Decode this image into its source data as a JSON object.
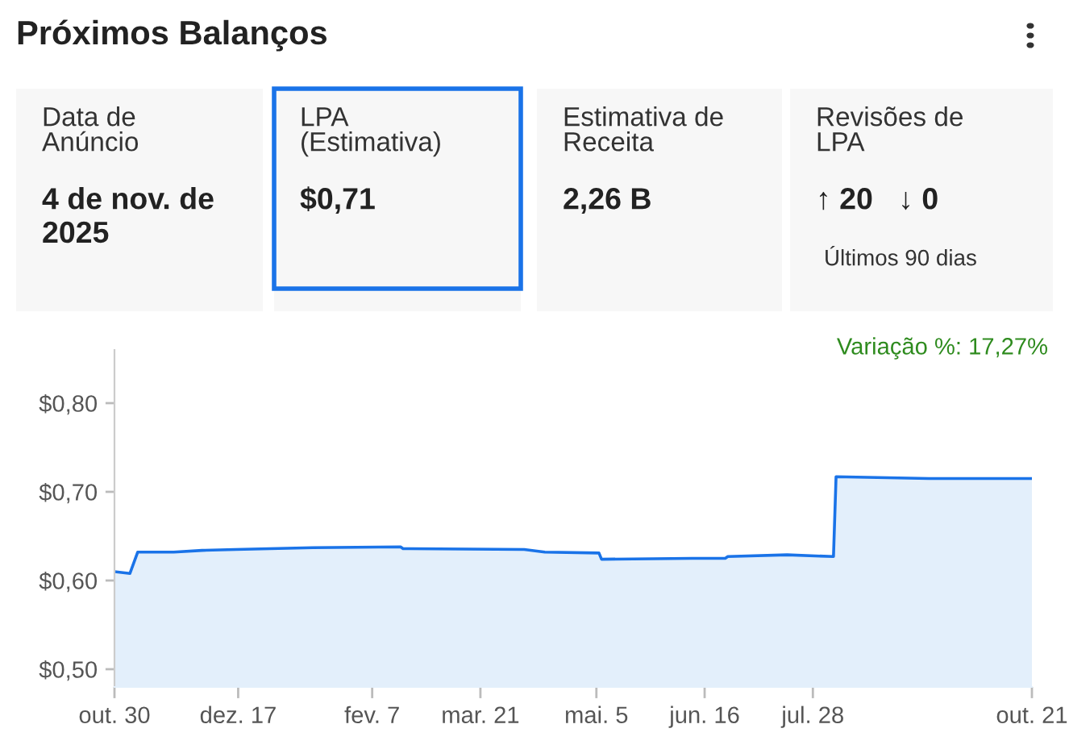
{
  "chart_data": [
    {
      "type": "other",
      "title": "Próximos Balanços",
      "annotations": [
        "Data de\nAnúncio",
        "4 de nov. de\n2025",
        "LPA\n(Estimativa)",
        "$0,71",
        "Estimativa de\nReceita",
        "2,26 B",
        "Revisões de\nLPA",
        "↑ 20   ↓ 0",
        "Últimos 90 dias"
      ]
    },
    {
      "type": "area",
      "annotations": [
        "Variação %: 17,27%"
      ],
      "grid": false,
      "x": [
        "2024-10-30",
        "2024-11-05",
        "2024-11-08",
        "2024-11-22",
        "2024-12-03",
        "2024-12-16",
        "2025-01-15",
        "2025-02-18",
        "2025-02-19",
        "2025-04-07",
        "2025-04-15",
        "2025-05-06",
        "2025-05-07",
        "2025-06-11",
        "2025-06-24",
        "2025-06-25",
        "2025-07-18",
        "2025-08-05",
        "2025-08-06",
        "2025-09-11",
        "2025-10-21"
      ],
      "series": [
        {
          "color": "#1a73e8",
          "values": [
            0.61,
            0.608,
            0.632,
            0.632,
            0.634,
            0.635,
            0.637,
            0.638,
            0.636,
            0.635,
            0.632,
            0.631,
            0.624,
            0.625,
            0.625,
            0.627,
            0.629,
            0.627,
            0.717,
            0.715,
            0.715
          ]
        }
      ],
      "xlim": [
        "2024-10-30",
        "2025-10-21"
      ],
      "xticks": [
        {
          "value": "2024-10-30",
          "label": "out. 30"
        },
        {
          "value": "2024-12-17",
          "label": "dez. 17"
        },
        {
          "value": "2025-02-07",
          "label": "fev. 7"
        },
        {
          "value": "2025-03-21",
          "label": "mar. 21"
        },
        {
          "value": "2025-05-05",
          "label": "mai. 5"
        },
        {
          "value": "2025-06-16",
          "label": "jun. 16"
        },
        {
          "value": "2025-07-28",
          "label": "jul. 28"
        },
        {
          "value": "2025-10-21",
          "label": "out. 21"
        }
      ],
      "ylim": [
        0.48,
        0.86
      ],
      "yticks": [
        {
          "value": 0.5,
          "label": "$0,50"
        },
        {
          "value": 0.6,
          "label": "$0,60"
        },
        {
          "value": 0.7,
          "label": "$0,70"
        },
        {
          "value": 0.8,
          "label": "$0,80"
        }
      ]
    }
  ]
}
